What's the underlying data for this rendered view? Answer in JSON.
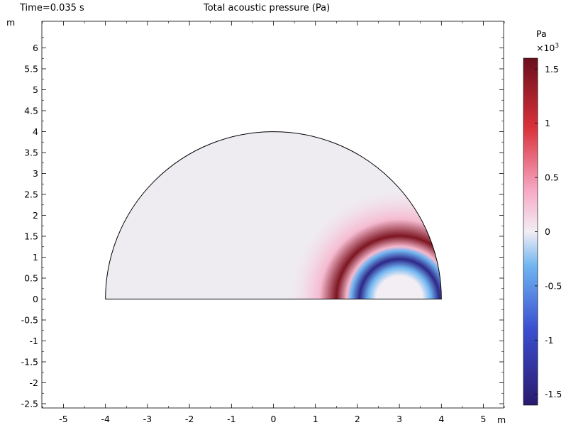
{
  "header": {
    "time_label": "Time=0.035 s",
    "title": "Total acoustic pressure (Pa)"
  },
  "chart_data": {
    "type": "heatmap",
    "title": "Total acoustic pressure (Pa)",
    "xlabel": "m",
    "ylabel": "m",
    "xlim": [
      -5.5,
      5.5
    ],
    "ylim": [
      -2.6,
      6.6
    ],
    "x_ticks": [
      -5,
      -4,
      -3,
      -2,
      -1,
      0,
      1,
      2,
      3,
      4,
      5
    ],
    "y_ticks": [
      -2.5,
      -2,
      -1.5,
      -1,
      -0.5,
      0,
      0.5,
      1,
      1.5,
      2,
      2.5,
      3,
      3.5,
      4,
      4.5,
      5,
      5.5,
      6
    ],
    "domain": {
      "shape": "half-disk",
      "center": [
        0,
        0
      ],
      "radius": 4
    },
    "wave": {
      "center": [
        3,
        0
      ],
      "rings": [
        {
          "radius": 0.55,
          "value": 0
        },
        {
          "radius": 0.75,
          "value": -0.5
        },
        {
          "radius": 0.95,
          "value": -1.5
        },
        {
          "radius": 1.15,
          "value": -0.5
        },
        {
          "radius": 1.25,
          "value": 0.3
        },
        {
          "radius": 1.5,
          "value": 1.5
        },
        {
          "radius": 1.9,
          "value": 0.3
        },
        {
          "radius": 2.6,
          "value": 0.1
        }
      ]
    },
    "colorbar": {
      "unit": "Pa",
      "multiplier_base": "×10",
      "multiplier_exp": "3",
      "range": [
        -1.6,
        1.6
      ],
      "ticks": [
        1.5,
        1,
        0.5,
        0,
        -0.5,
        -1,
        -1.5
      ],
      "tick_labels": [
        "1.5",
        "1",
        "0.5",
        "0",
        "-0.5",
        "-1",
        "-1.5"
      ]
    }
  }
}
